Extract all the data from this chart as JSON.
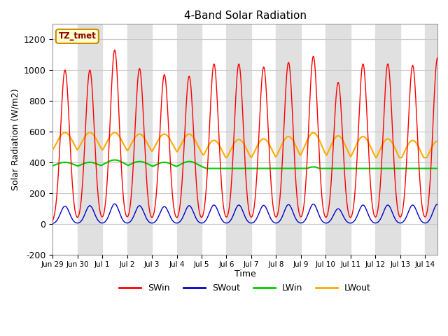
{
  "title": "4-Band Solar Radiation",
  "ylabel": "Solar Radiation (W/m2)",
  "xlabel": "Time",
  "annotation": "TZ_tmet",
  "ylim": [
    -200,
    1300
  ],
  "yticks": [
    -200,
    0,
    200,
    400,
    600,
    800,
    1000,
    1200
  ],
  "colors": {
    "SWin": "#ff0000",
    "SWout": "#0000cc",
    "LWin": "#00cc00",
    "LWout": "#ffaa00"
  },
  "background_color": "#ffffff",
  "grid_color": "#c8c8c8",
  "band_color": "#e0e0e0",
  "n_days": 16,
  "SWin_peaks": [
    1000,
    1000,
    1130,
    1010,
    970,
    960,
    1040,
    1040,
    1020,
    1050,
    1090,
    920,
    1040,
    1040,
    1030,
    1080
  ],
  "SWout_peaks": [
    115,
    118,
    130,
    118,
    112,
    118,
    122,
    122,
    120,
    125,
    128,
    98,
    122,
    122,
    122,
    128
  ],
  "LWout_day_peaks": [
    600,
    600,
    600,
    590,
    590,
    590,
    550,
    555,
    560,
    575,
    600,
    580,
    575,
    560,
    550,
    545
  ],
  "LWout_night": [
    430,
    430,
    425,
    420,
    420,
    410,
    370,
    375,
    375,
    380,
    390,
    375,
    375,
    360,
    355,
    350
  ],
  "LWin_day_peaks": [
    400,
    400,
    415,
    405,
    400,
    405,
    340,
    345,
    345,
    350,
    370,
    345,
    360,
    340,
    330,
    320
  ],
  "LWin_night": [
    360,
    355,
    360,
    355,
    350,
    350,
    290,
    295,
    295,
    300,
    315,
    295,
    305,
    285,
    280,
    275
  ]
}
